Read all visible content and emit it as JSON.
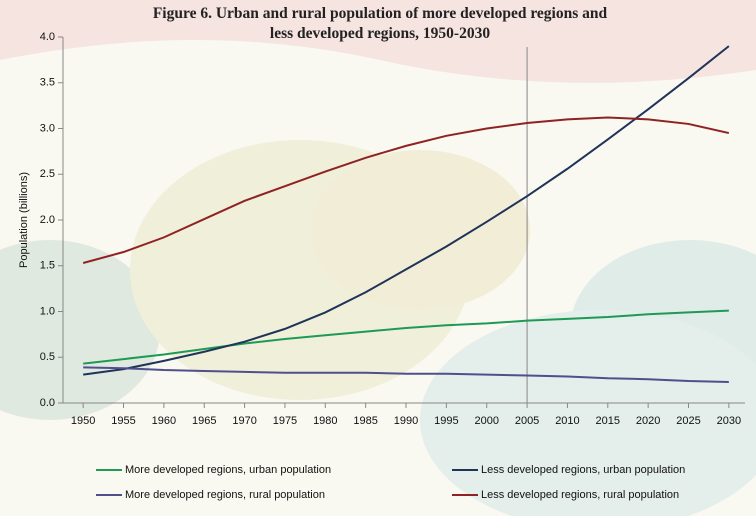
{
  "chart_data": {
    "type": "line",
    "title": "Figure 6. Urban and rural population of more developed regions and less developed regions, 1950-2030",
    "y_label": "Population (billions)",
    "x": [
      1950,
      1955,
      1960,
      1965,
      1970,
      1975,
      1980,
      1985,
      1990,
      1995,
      2000,
      2005,
      2010,
      2015,
      2020,
      2025,
      2030
    ],
    "xlim": [
      1947.5,
      2032
    ],
    "xticks": [
      1950,
      1955,
      1960,
      1965,
      1970,
      1975,
      1980,
      1985,
      1990,
      1995,
      2000,
      2005,
      2010,
      2015,
      2020,
      2025,
      2030
    ],
    "ylim": [
      0,
      4
    ],
    "yticks": [
      {
        "value": 0,
        "label": "0.0"
      },
      {
        "value": 0.5,
        "label": "0.5"
      },
      {
        "value": 1,
        "label": "1.0"
      },
      {
        "value": 1.5,
        "label": "1.5"
      },
      {
        "value": 2,
        "label": "2.0"
      },
      {
        "value": 2.5,
        "label": "2.5"
      },
      {
        "value": 3,
        "label": "3.0"
      },
      {
        "value": 3.5,
        "label": "3.5"
      },
      {
        "value": 4,
        "label": "4.0"
      }
    ],
    "reference_line_x": 2005,
    "series": [
      {
        "name": "More developed regions, urban population",
        "color": "#1e9a55",
        "values": [
          0.43,
          0.48,
          0.53,
          0.59,
          0.65,
          0.7,
          0.74,
          0.78,
          0.82,
          0.85,
          0.87,
          0.9,
          0.92,
          0.94,
          0.97,
          0.99,
          1.01
        ]
      },
      {
        "name": "Less developed regions, urban population",
        "color": "#1f3458",
        "values": [
          0.31,
          0.37,
          0.46,
          0.56,
          0.67,
          0.81,
          0.99,
          1.21,
          1.46,
          1.71,
          1.98,
          2.26,
          2.56,
          2.88,
          3.21,
          3.55,
          3.9
        ]
      },
      {
        "name": "More developed regions, rural population",
        "color": "#4f4f8e",
        "values": [
          0.39,
          0.38,
          0.36,
          0.35,
          0.34,
          0.33,
          0.33,
          0.33,
          0.32,
          0.32,
          0.31,
          0.3,
          0.29,
          0.27,
          0.26,
          0.24,
          0.23
        ]
      },
      {
        "name": "Less developed regions, rural population",
        "color": "#8f2323",
        "values": [
          1.53,
          1.65,
          1.81,
          2.01,
          2.21,
          2.37,
          2.53,
          2.68,
          2.81,
          2.92,
          3.0,
          3.06,
          3.1,
          3.12,
          3.1,
          3.05,
          2.95
        ]
      }
    ]
  }
}
